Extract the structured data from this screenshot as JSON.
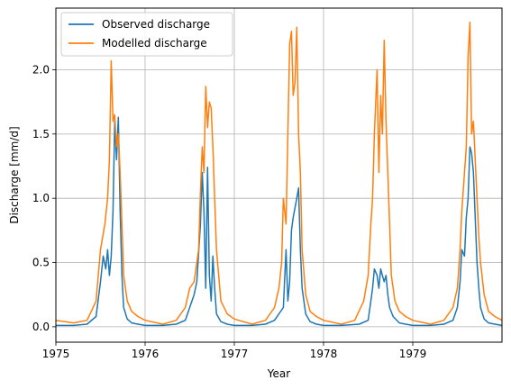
{
  "chart_data": {
    "type": "line",
    "xlabel": "Year",
    "ylabel": "Discharge [mm/d]",
    "xlim": [
      1975.0,
      1980.0
    ],
    "ylim": [
      -0.12,
      2.48
    ],
    "x_ticks": [
      1975,
      1976,
      1977,
      1978,
      1979
    ],
    "x_tick_labels": [
      "1975",
      "1976",
      "1977",
      "1978",
      "1979"
    ],
    "y_ticks": [
      0.0,
      0.5,
      1.0,
      1.5,
      2.0
    ],
    "y_tick_labels": [
      "0.0",
      "0.5",
      "1.0",
      "1.5",
      "2.0"
    ],
    "grid": true,
    "legend_position": "top-left",
    "series": [
      {
        "name": "Observed discharge",
        "color": "#1f77b4",
        "x": [
          1975.0,
          1975.2,
          1975.35,
          1975.45,
          1975.5,
          1975.53,
          1975.56,
          1975.58,
          1975.6,
          1975.62,
          1975.64,
          1975.66,
          1975.68,
          1975.7,
          1975.72,
          1975.74,
          1975.76,
          1975.8,
          1975.85,
          1975.92,
          1976.0,
          1976.2,
          1976.35,
          1976.45,
          1976.5,
          1976.55,
          1976.58,
          1976.62,
          1976.64,
          1976.66,
          1976.68,
          1976.7,
          1976.72,
          1976.74,
          1976.76,
          1976.78,
          1976.8,
          1976.85,
          1976.92,
          1977.0,
          1977.2,
          1977.35,
          1977.45,
          1977.55,
          1977.58,
          1977.6,
          1977.62,
          1977.64,
          1977.66,
          1977.7,
          1977.72,
          1977.74,
          1977.76,
          1977.8,
          1977.85,
          1977.92,
          1978.0,
          1978.2,
          1978.4,
          1978.5,
          1978.53,
          1978.55,
          1978.57,
          1978.6,
          1978.62,
          1978.64,
          1978.66,
          1978.68,
          1978.7,
          1978.72,
          1978.74,
          1978.78,
          1978.85,
          1978.92,
          1979.0,
          1979.2,
          1979.35,
          1979.45,
          1979.5,
          1979.53,
          1979.55,
          1979.58,
          1979.6,
          1979.62,
          1979.64,
          1979.66,
          1979.68,
          1979.7,
          1979.72,
          1979.74,
          1979.76,
          1979.8,
          1979.85,
          1979.92,
          1980.0
        ],
        "y": [
          0.01,
          0.01,
          0.02,
          0.08,
          0.35,
          0.55,
          0.45,
          0.6,
          0.4,
          0.55,
          0.9,
          1.6,
          1.3,
          1.63,
          0.9,
          0.4,
          0.15,
          0.06,
          0.03,
          0.02,
          0.01,
          0.01,
          0.02,
          0.05,
          0.15,
          0.25,
          0.35,
          0.8,
          1.2,
          0.9,
          0.3,
          1.24,
          0.4,
          0.2,
          0.55,
          0.3,
          0.1,
          0.04,
          0.02,
          0.01,
          0.01,
          0.02,
          0.05,
          0.15,
          0.6,
          0.2,
          0.35,
          0.75,
          0.85,
          1.0,
          1.08,
          0.6,
          0.3,
          0.1,
          0.04,
          0.02,
          0.01,
          0.01,
          0.02,
          0.05,
          0.2,
          0.3,
          0.45,
          0.4,
          0.3,
          0.45,
          0.4,
          0.35,
          0.4,
          0.25,
          0.15,
          0.08,
          0.03,
          0.02,
          0.01,
          0.01,
          0.02,
          0.05,
          0.15,
          0.35,
          0.6,
          0.55,
          0.85,
          1.0,
          1.4,
          1.35,
          1.2,
          0.85,
          0.5,
          0.3,
          0.15,
          0.06,
          0.03,
          0.02,
          0.01
        ]
      },
      {
        "name": "Modelled discharge",
        "color": "#ff7f0e",
        "x": [
          1975.0,
          1975.2,
          1975.35,
          1975.45,
          1975.5,
          1975.55,
          1975.58,
          1975.6,
          1975.62,
          1975.64,
          1975.66,
          1975.68,
          1975.7,
          1975.72,
          1975.74,
          1975.76,
          1975.8,
          1975.85,
          1975.92,
          1976.0,
          1976.2,
          1976.35,
          1976.45,
          1976.5,
          1976.55,
          1976.58,
          1976.6,
          1976.62,
          1976.64,
          1976.66,
          1976.68,
          1976.7,
          1976.72,
          1976.74,
          1976.76,
          1976.8,
          1976.85,
          1976.92,
          1977.0,
          1977.2,
          1977.35,
          1977.45,
          1977.5,
          1977.53,
          1977.55,
          1977.58,
          1977.6,
          1977.62,
          1977.64,
          1977.66,
          1977.68,
          1977.7,
          1977.72,
          1977.74,
          1977.76,
          1977.8,
          1977.85,
          1977.92,
          1978.0,
          1978.2,
          1978.35,
          1978.45,
          1978.5,
          1978.53,
          1978.55,
          1978.57,
          1978.6,
          1978.62,
          1978.64,
          1978.66,
          1978.68,
          1978.7,
          1978.72,
          1978.74,
          1978.76,
          1978.8,
          1978.85,
          1978.92,
          1979.0,
          1979.2,
          1979.35,
          1979.45,
          1979.5,
          1979.53,
          1979.55,
          1979.58,
          1979.6,
          1979.62,
          1979.64,
          1979.66,
          1979.68,
          1979.7,
          1979.72,
          1979.74,
          1979.76,
          1979.8,
          1979.85,
          1979.92,
          1980.0
        ],
        "y": [
          0.05,
          0.03,
          0.05,
          0.2,
          0.6,
          0.8,
          1.0,
          1.3,
          2.07,
          1.6,
          1.65,
          1.4,
          1.5,
          1.2,
          0.8,
          0.4,
          0.2,
          0.12,
          0.08,
          0.05,
          0.02,
          0.05,
          0.15,
          0.3,
          0.35,
          0.5,
          0.6,
          1.05,
          1.4,
          1.2,
          1.87,
          1.55,
          1.75,
          1.7,
          1.4,
          0.6,
          0.2,
          0.1,
          0.06,
          0.02,
          0.05,
          0.15,
          0.3,
          0.5,
          1.0,
          0.8,
          1.5,
          2.2,
          2.3,
          1.8,
          1.9,
          2.33,
          1.5,
          1.2,
          0.6,
          0.25,
          0.12,
          0.08,
          0.05,
          0.02,
          0.05,
          0.2,
          0.4,
          0.8,
          1.0,
          1.5,
          2.0,
          1.2,
          1.8,
          1.5,
          2.23,
          1.6,
          1.2,
          0.8,
          0.4,
          0.2,
          0.12,
          0.08,
          0.05,
          0.02,
          0.05,
          0.15,
          0.3,
          0.6,
          0.9,
          1.2,
          1.4,
          2.1,
          2.37,
          1.5,
          1.6,
          1.3,
          1.0,
          0.7,
          0.5,
          0.25,
          0.12,
          0.08,
          0.05
        ]
      }
    ]
  }
}
